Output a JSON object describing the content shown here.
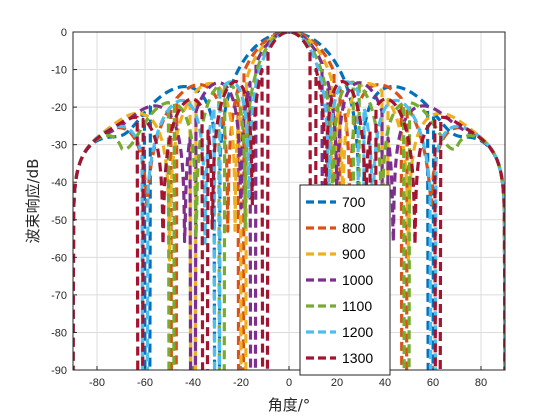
{
  "chart_data": {
    "type": "line",
    "title": "",
    "xlabel": "角度/°",
    "ylabel": "波束响应/dB",
    "xlim": [
      -90,
      90
    ],
    "ylim": [
      -90,
      0
    ],
    "xticks": [
      -80,
      -60,
      -40,
      -20,
      0,
      20,
      40,
      60,
      80
    ],
    "yticks": [
      0,
      -10,
      -20,
      -30,
      -40,
      -50,
      -60,
      -70,
      -80,
      -90
    ],
    "grid": true,
    "legend_position": "lower-center-right",
    "line_style": "dashed",
    "series": [
      {
        "name": "700",
        "color": "#0072BD",
        "null_angles": [
          -59,
          -30,
          30,
          59
        ]
      },
      {
        "name": "800",
        "color": "#D95319",
        "null_angles": [
          -48,
          -20,
          20,
          48
        ]
      },
      {
        "name": "900",
        "color": "#EDB120",
        "null_angles": [
          -40,
          -19,
          19,
          40
        ]
      },
      {
        "name": "1000",
        "color": "#7E2F8E",
        "null_angles": [
          -40,
          -15,
          15,
          40
        ]
      },
      {
        "name": "1100",
        "color": "#77AC30",
        "null_angles": [
          -49,
          -28,
          28,
          49
        ]
      },
      {
        "name": "1200",
        "color": "#4DBEEE",
        "null_angles": [
          -60,
          -30,
          30,
          60
        ]
      },
      {
        "name": "1300",
        "color": "#A2142F",
        "null_angles": [
          -62,
          -35,
          -10,
          10,
          35,
          62
        ]
      }
    ]
  }
}
